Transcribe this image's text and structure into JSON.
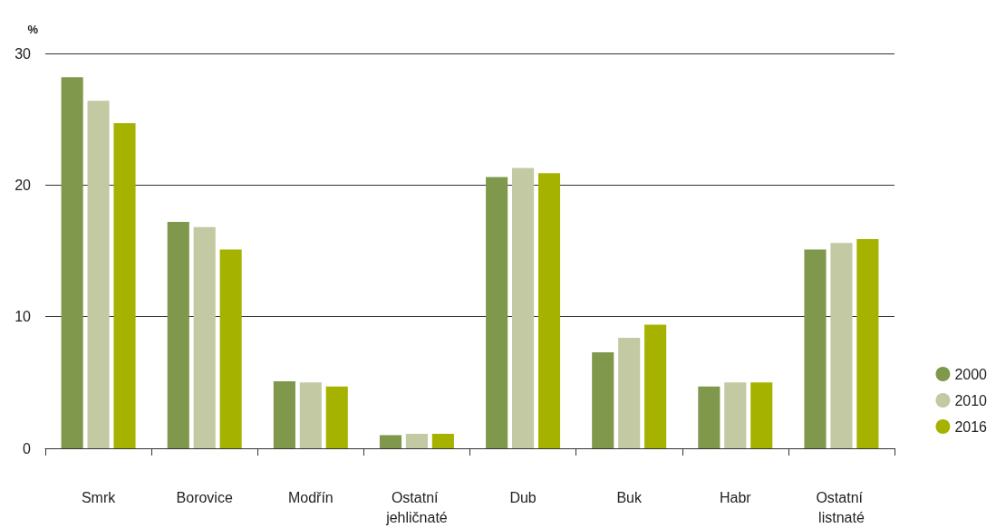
{
  "chart_data": {
    "type": "bar",
    "ylabel": "%",
    "categories": [
      "Smrk",
      "Borovice",
      "Modřín",
      "Ostatní jehličnaté",
      "Dub",
      "Buk",
      "Habr",
      "Ostatní listnaté"
    ],
    "series": [
      {
        "name": "2000",
        "color": "#7f984b",
        "values": [
          28.2,
          17.2,
          5.1,
          1.0,
          20.6,
          7.3,
          4.7,
          15.1
        ]
      },
      {
        "name": "2010",
        "color": "#c2c9a3",
        "values": [
          26.4,
          16.8,
          5.0,
          1.1,
          21.3,
          8.4,
          5.0,
          15.6
        ]
      },
      {
        "name": "2016",
        "color": "#a5b300",
        "values": [
          24.7,
          15.1,
          4.7,
          1.1,
          20.9,
          9.4,
          5.0,
          15.9
        ]
      }
    ],
    "ylim": [
      0,
      30
    ],
    "yticks": [
      0,
      10,
      20,
      30
    ],
    "grid": "y",
    "legend": "right"
  }
}
